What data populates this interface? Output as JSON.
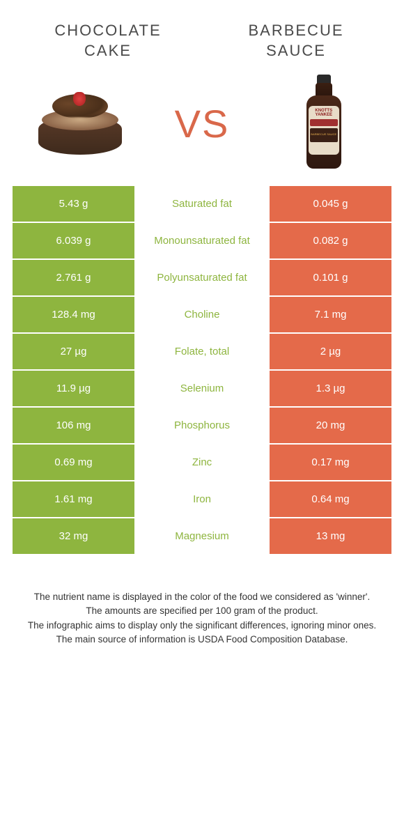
{
  "header": {
    "left_title_l1": "CHOCOLATE",
    "left_title_l2": "CAKE",
    "right_title_l1": "BARBECUE",
    "right_title_l2": "SAUCE",
    "vs": "VS"
  },
  "colors": {
    "green": "#8eb53f",
    "orange": "#e46a4a",
    "vs_color": "#d9684a",
    "title_color": "#4a4a4a",
    "footer_color": "#333333"
  },
  "bottle_label": {
    "brand_l1": "KNOTTS",
    "brand_l2": "YANKEE",
    "sub": "BARBECUE SAUCE"
  },
  "rows": [
    {
      "left": "5.43 g",
      "mid": "Saturated fat",
      "right": "0.045 g",
      "winner": "green"
    },
    {
      "left": "6.039 g",
      "mid": "Monounsaturated fat",
      "right": "0.082 g",
      "winner": "green"
    },
    {
      "left": "2.761 g",
      "mid": "Polyunsaturated fat",
      "right": "0.101 g",
      "winner": "green"
    },
    {
      "left": "128.4 mg",
      "mid": "Choline",
      "right": "7.1 mg",
      "winner": "green"
    },
    {
      "left": "27 µg",
      "mid": "Folate, total",
      "right": "2 µg",
      "winner": "green"
    },
    {
      "left": "11.9 µg",
      "mid": "Selenium",
      "right": "1.3 µg",
      "winner": "green"
    },
    {
      "left": "106 mg",
      "mid": "Phosphorus",
      "right": "20 mg",
      "winner": "green"
    },
    {
      "left": "0.69 mg",
      "mid": "Zinc",
      "right": "0.17 mg",
      "winner": "green"
    },
    {
      "left": "1.61 mg",
      "mid": "Iron",
      "right": "0.64 mg",
      "winner": "green"
    },
    {
      "left": "32 mg",
      "mid": "Magnesium",
      "right": "13 mg",
      "winner": "green"
    }
  ],
  "footer": {
    "l1": "The nutrient name is displayed in the color of the food we considered as 'winner'.",
    "l2": "The amounts are specified per 100 gram of the product.",
    "l3": "The infographic aims to display only the significant differences, ignoring minor ones.",
    "l4": "The main source of information is USDA Food Composition Database."
  }
}
